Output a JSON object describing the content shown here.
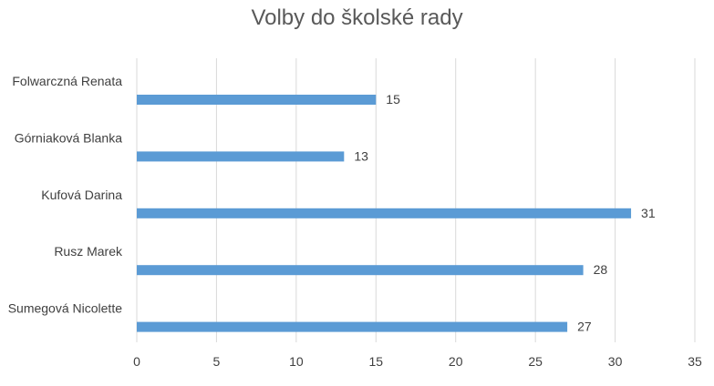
{
  "chart_data": {
    "type": "bar",
    "orientation": "horizontal",
    "title": "Volby do školské rady",
    "categories": [
      "Folwarczná Renata",
      "Górniaková Blanka",
      "Kufová Darina",
      "Rusz Marek",
      "Sumegová Nicolette"
    ],
    "values": [
      15,
      13,
      31,
      28,
      27
    ],
    "xlim": [
      0,
      35
    ],
    "xticks": [
      0,
      5,
      10,
      15,
      20,
      25,
      30,
      35
    ],
    "grid": true,
    "legend": "none",
    "data_labels": true,
    "bar_color": "#5b9bd5",
    "grid_color": "#d9d9d9"
  }
}
